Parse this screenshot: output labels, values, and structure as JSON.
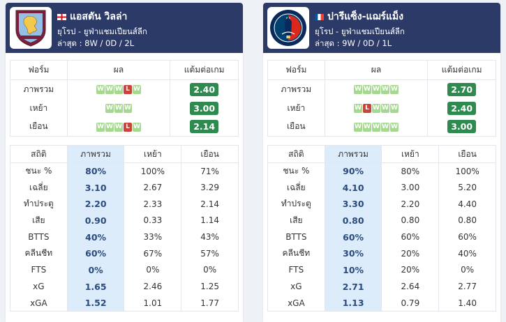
{
  "teams": [
    {
      "name": "แอสตัน วิลล่า",
      "flag": "england",
      "league": "ยุโรป - ยูฟ่าแชมเปียนส์ลีก",
      "recent": "ล่าสุด : 8W / 0D / 2L",
      "form_headers": [
        "ฟอร์ม",
        "ผล",
        "แต้มต่อเกม"
      ],
      "form_rows": [
        {
          "label": "ภาพรวม",
          "results": [
            "W",
            "W",
            "W",
            "L",
            "W"
          ],
          "ppg": "2.40"
        },
        {
          "label": "เหย้า",
          "results": [
            "W",
            "W",
            "W"
          ],
          "ppg": "3.00"
        },
        {
          "label": "เยือน",
          "results": [
            "W",
            "W",
            "W",
            "L",
            "W"
          ],
          "ppg": "2.14"
        }
      ],
      "stat_headers": [
        "สถิติ",
        "ภาพรวม",
        "เหย้า",
        "เยือน"
      ],
      "stat_rows": [
        {
          "label": "ชนะ %",
          "overall": "80%",
          "home": "100%",
          "away": "71%"
        },
        {
          "label": "เฉลี่ย",
          "overall": "3.10",
          "home": "2.67",
          "away": "3.29"
        },
        {
          "label": "ทำประตู",
          "overall": "2.20",
          "home": "2.33",
          "away": "2.14"
        },
        {
          "label": "เสีย",
          "overall": "0.90",
          "home": "0.33",
          "away": "1.14"
        },
        {
          "label": "BTTS",
          "overall": "40%",
          "home": "33%",
          "away": "43%"
        },
        {
          "label": "คลีนชีท",
          "overall": "60%",
          "home": "67%",
          "away": "57%"
        },
        {
          "label": "FTS",
          "overall": "0%",
          "home": "0%",
          "away": "0%"
        },
        {
          "label": "xG",
          "overall": "1.65",
          "home": "2.46",
          "away": "1.25"
        },
        {
          "label": "xGA",
          "overall": "1.52",
          "home": "1.01",
          "away": "1.77"
        }
      ]
    },
    {
      "name": "ปารีแซ็ง-แฌร์แม็ง",
      "flag": "france",
      "league": "ยุโรป - ยูฟ่าแชมเปียนส์ลีก",
      "recent": "ล่าสุด : 9W / 0D / 1L",
      "form_headers": [
        "ฟอร์ม",
        "ผล",
        "แต้มต่อเกม"
      ],
      "form_rows": [
        {
          "label": "ภาพรวม",
          "results": [
            "W",
            "W",
            "W",
            "W",
            "W"
          ],
          "ppg": "2.70"
        },
        {
          "label": "เหย้า",
          "results": [
            "W",
            "L",
            "W",
            "W",
            "W"
          ],
          "ppg": "2.40"
        },
        {
          "label": "เยือน",
          "results": [
            "W",
            "W",
            "W",
            "W",
            "W"
          ],
          "ppg": "3.00"
        }
      ],
      "stat_headers": [
        "สถิติ",
        "ภาพรวม",
        "เหย้า",
        "เยือน"
      ],
      "stat_rows": [
        {
          "label": "ชนะ %",
          "overall": "90%",
          "home": "80%",
          "away": "100%"
        },
        {
          "label": "เฉลี่ย",
          "overall": "4.10",
          "home": "3.00",
          "away": "5.20"
        },
        {
          "label": "ทำประตู",
          "overall": "3.30",
          "home": "2.20",
          "away": "4.40"
        },
        {
          "label": "เสีย",
          "overall": "0.80",
          "home": "0.80",
          "away": "0.80"
        },
        {
          "label": "BTTS",
          "overall": "60%",
          "home": "60%",
          "away": "60%"
        },
        {
          "label": "คลีนชีท",
          "overall": "30%",
          "home": "20%",
          "away": "40%"
        },
        {
          "label": "FTS",
          "overall": "10%",
          "home": "20%",
          "away": "0%"
        },
        {
          "label": "xG",
          "overall": "2.71",
          "home": "2.64",
          "away": "2.77"
        },
        {
          "label": "xGA",
          "overall": "1.13",
          "home": "0.79",
          "away": "1.40"
        }
      ]
    }
  ],
  "colors": {
    "header_bg": "#2b3a67",
    "win": "#a5d98f",
    "loss": "#c9433b",
    "ppg_badge": "#2e8a4e",
    "highlight_col": "#dcecfb"
  },
  "logos": [
    "aston-villa-crest",
    "psg-crest"
  ]
}
